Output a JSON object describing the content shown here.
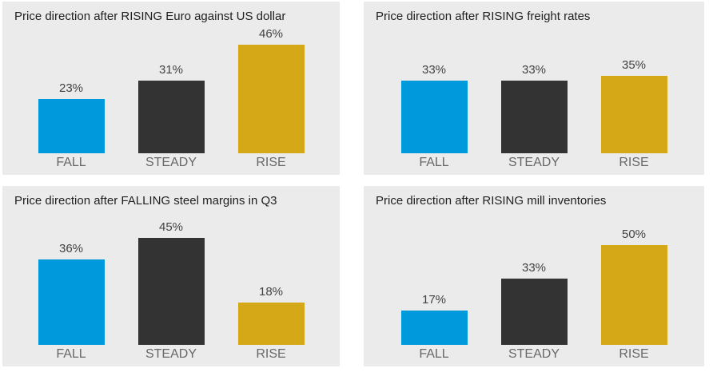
{
  "palette": {
    "panel_bg": "#ebebeb",
    "fall": "#0099db",
    "steady": "#333333",
    "rise": "#d4a817",
    "title_text": "#212121",
    "value_text": "#424242",
    "category_text": "#686868"
  },
  "chart_data": [
    {
      "type": "bar",
      "title": "Price direction after RISING Euro against US dollar",
      "categories": [
        "FALL",
        "STEADY",
        "RISE"
      ],
      "values": [
        23,
        31,
        46
      ],
      "value_labels": [
        "23%",
        "31%",
        "46%"
      ],
      "series_colors": [
        "#0099db",
        "#333333",
        "#d4a817"
      ],
      "xlabel": "",
      "ylabel": "",
      "ylim": [
        0,
        50
      ],
      "grid": false,
      "legend": "none"
    },
    {
      "type": "bar",
      "title": "Price direction after RISING freight rates",
      "categories": [
        "FALL",
        "STEADY",
        "RISE"
      ],
      "values": [
        33,
        33,
        35
      ],
      "value_labels": [
        "33%",
        "33%",
        "35%"
      ],
      "series_colors": [
        "#0099db",
        "#333333",
        "#d4a817"
      ],
      "xlabel": "",
      "ylabel": "",
      "ylim": [
        0,
        40
      ],
      "grid": false,
      "legend": "none"
    },
    {
      "type": "bar",
      "title": "Price direction after FALLING steel margins in Q3",
      "categories": [
        "FALL",
        "STEADY",
        "RISE"
      ],
      "values": [
        36,
        45,
        18
      ],
      "value_labels": [
        "36%",
        "45%",
        "18%"
      ],
      "series_colors": [
        "#0099db",
        "#333333",
        "#d4a817"
      ],
      "xlabel": "",
      "ylabel": "",
      "ylim": [
        0,
        50
      ],
      "grid": false,
      "legend": "none"
    },
    {
      "type": "bar",
      "title": "Price direction after RISING mill inventories",
      "categories": [
        "FALL",
        "STEADY",
        "RISE"
      ],
      "values": [
        17,
        33,
        50
      ],
      "value_labels": [
        "17%",
        "33%",
        "50%"
      ],
      "series_colors": [
        "#0099db",
        "#333333",
        "#d4a817"
      ],
      "xlabel": "",
      "ylabel": "",
      "ylim": [
        0,
        60
      ],
      "grid": false,
      "legend": "none"
    }
  ]
}
